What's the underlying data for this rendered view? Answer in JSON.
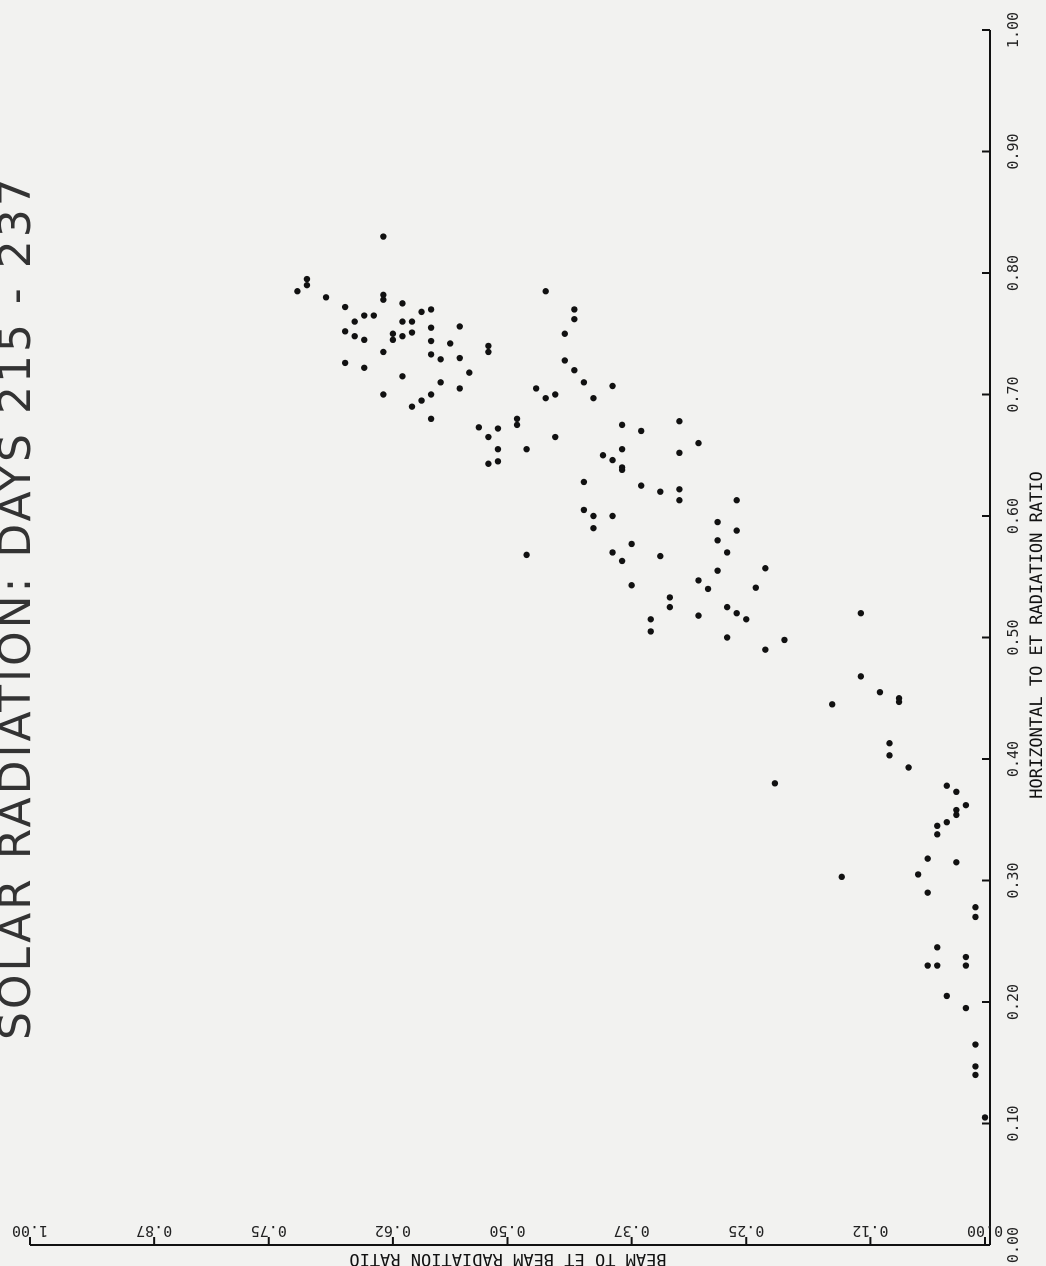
{
  "chart_data": {
    "type": "scatter",
    "title": "SOLAR RADIATION: DAYS 215 - 237",
    "xlabel": "HORIZONTAL TO ET RADIATION RATIO",
    "ylabel": "BEAM TO ET BEAM RADIATION RATIO",
    "xlim": [
      0,
      1
    ],
    "ylim": [
      0,
      1
    ],
    "x_ticks": [
      "0.00",
      "0.10",
      "0.20",
      "0.30",
      "0.40",
      "0.50",
      "0.60",
      "0.70",
      "0.80",
      "0.90",
      "1.00"
    ],
    "y_ticks": [
      "0.00",
      "0.12",
      "0.25",
      "0.37",
      "0.50",
      "0.62",
      "0.75",
      "0.87",
      "1.00"
    ],
    "grid": false,
    "point_color": "#111111",
    "points": [
      [
        0.105,
        0.0
      ],
      [
        0.14,
        0.01
      ],
      [
        0.147,
        0.01
      ],
      [
        0.165,
        0.01
      ],
      [
        0.195,
        0.02
      ],
      [
        0.23,
        0.02
      ],
      [
        0.237,
        0.02
      ],
      [
        0.27,
        0.01
      ],
      [
        0.278,
        0.01
      ],
      [
        0.205,
        0.04
      ],
      [
        0.23,
        0.05
      ],
      [
        0.23,
        0.06
      ],
      [
        0.245,
        0.05
      ],
      [
        0.29,
        0.06
      ],
      [
        0.305,
        0.07
      ],
      [
        0.315,
        0.03
      ],
      [
        0.318,
        0.06
      ],
      [
        0.338,
        0.05
      ],
      [
        0.345,
        0.05
      ],
      [
        0.348,
        0.04
      ],
      [
        0.354,
        0.03
      ],
      [
        0.358,
        0.03
      ],
      [
        0.362,
        0.02
      ],
      [
        0.373,
        0.03
      ],
      [
        0.378,
        0.04
      ],
      [
        0.393,
        0.08
      ],
      [
        0.303,
        0.15
      ],
      [
        0.38,
        0.22
      ],
      [
        0.403,
        0.1
      ],
      [
        0.413,
        0.1
      ],
      [
        0.445,
        0.16
      ],
      [
        0.447,
        0.09
      ],
      [
        0.45,
        0.09
      ],
      [
        0.455,
        0.11
      ],
      [
        0.468,
        0.13
      ],
      [
        0.49,
        0.23
      ],
      [
        0.498,
        0.21
      ],
      [
        0.5,
        0.27
      ],
      [
        0.515,
        0.25
      ],
      [
        0.52,
        0.26
      ],
      [
        0.52,
        0.13
      ],
      [
        0.525,
        0.27
      ],
      [
        0.54,
        0.29
      ],
      [
        0.541,
        0.24
      ],
      [
        0.547,
        0.3
      ],
      [
        0.555,
        0.28
      ],
      [
        0.557,
        0.23
      ],
      [
        0.57,
        0.27
      ],
      [
        0.58,
        0.28
      ],
      [
        0.588,
        0.26
      ],
      [
        0.595,
        0.28
      ],
      [
        0.613,
        0.26
      ],
      [
        0.505,
        0.35
      ],
      [
        0.515,
        0.35
      ],
      [
        0.518,
        0.3
      ],
      [
        0.525,
        0.33
      ],
      [
        0.533,
        0.33
      ],
      [
        0.543,
        0.37
      ],
      [
        0.563,
        0.38
      ],
      [
        0.567,
        0.34
      ],
      [
        0.568,
        0.48
      ],
      [
        0.57,
        0.39
      ],
      [
        0.577,
        0.37
      ],
      [
        0.59,
        0.41
      ],
      [
        0.6,
        0.39
      ],
      [
        0.6,
        0.41
      ],
      [
        0.605,
        0.42
      ],
      [
        0.613,
        0.32
      ],
      [
        0.62,
        0.34
      ],
      [
        0.622,
        0.32
      ],
      [
        0.625,
        0.36
      ],
      [
        0.628,
        0.42
      ],
      [
        0.638,
        0.38
      ],
      [
        0.64,
        0.38
      ],
      [
        0.646,
        0.39
      ],
      [
        0.65,
        0.4
      ],
      [
        0.652,
        0.32
      ],
      [
        0.655,
        0.38
      ],
      [
        0.66,
        0.3
      ],
      [
        0.67,
        0.36
      ],
      [
        0.675,
        0.38
      ],
      [
        0.678,
        0.32
      ],
      [
        0.697,
        0.46
      ],
      [
        0.7,
        0.45
      ],
      [
        0.705,
        0.47
      ],
      [
        0.707,
        0.39
      ],
      [
        0.71,
        0.42
      ],
      [
        0.72,
        0.43
      ],
      [
        0.728,
        0.44
      ],
      [
        0.75,
        0.44
      ],
      [
        0.762,
        0.43
      ],
      [
        0.77,
        0.43
      ],
      [
        0.785,
        0.46
      ],
      [
        0.665,
        0.45
      ],
      [
        0.655,
        0.48
      ],
      [
        0.645,
        0.51
      ],
      [
        0.643,
        0.52
      ],
      [
        0.655,
        0.51
      ],
      [
        0.665,
        0.52
      ],
      [
        0.672,
        0.51
      ],
      [
        0.675,
        0.49
      ],
      [
        0.68,
        0.49
      ],
      [
        0.697,
        0.41
      ],
      [
        0.673,
        0.53
      ],
      [
        0.68,
        0.58
      ],
      [
        0.69,
        0.6
      ],
      [
        0.695,
        0.59
      ],
      [
        0.7,
        0.58
      ],
      [
        0.7,
        0.63
      ],
      [
        0.705,
        0.55
      ],
      [
        0.71,
        0.57
      ],
      [
        0.715,
        0.61
      ],
      [
        0.718,
        0.54
      ],
      [
        0.722,
        0.65
      ],
      [
        0.73,
        0.55
      ],
      [
        0.733,
        0.58
      ],
      [
        0.735,
        0.52
      ],
      [
        0.74,
        0.52
      ],
      [
        0.742,
        0.56
      ],
      [
        0.744,
        0.58
      ],
      [
        0.745,
        0.62
      ],
      [
        0.748,
        0.61
      ],
      [
        0.75,
        0.62
      ],
      [
        0.751,
        0.6
      ],
      [
        0.755,
        0.58
      ],
      [
        0.756,
        0.55
      ],
      [
        0.76,
        0.6
      ],
      [
        0.765,
        0.64
      ],
      [
        0.768,
        0.59
      ],
      [
        0.77,
        0.58
      ],
      [
        0.772,
        0.67
      ],
      [
        0.775,
        0.61
      ],
      [
        0.778,
        0.63
      ],
      [
        0.78,
        0.69
      ],
      [
        0.782,
        0.63
      ],
      [
        0.785,
        0.72
      ],
      [
        0.79,
        0.71
      ],
      [
        0.795,
        0.71
      ],
      [
        0.83,
        0.63
      ],
      [
        0.745,
        0.65
      ],
      [
        0.735,
        0.63
      ],
      [
        0.748,
        0.66
      ],
      [
        0.752,
        0.67
      ],
      [
        0.76,
        0.66
      ],
      [
        0.765,
        0.65
      ],
      [
        0.76,
        0.61
      ],
      [
        0.726,
        0.67
      ],
      [
        0.729,
        0.57
      ]
    ]
  }
}
